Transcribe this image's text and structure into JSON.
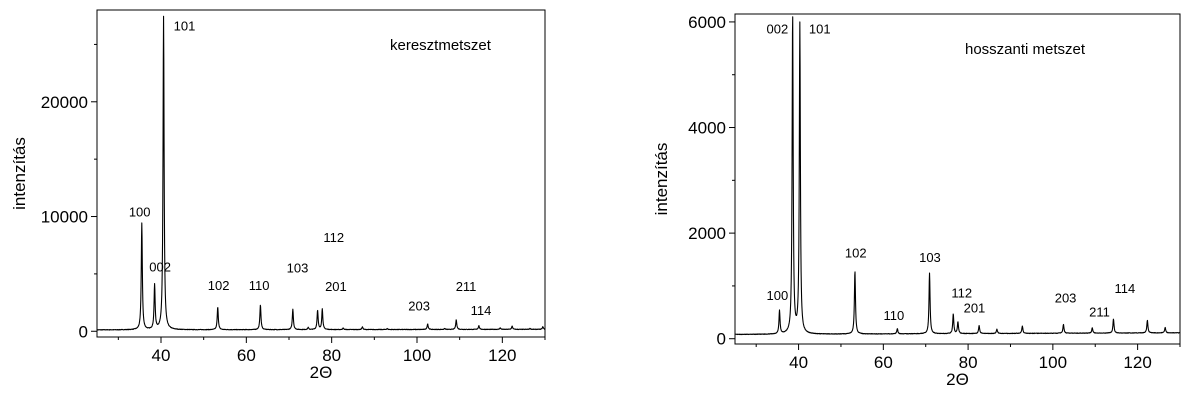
{
  "chart_data": [
    {
      "type": "line",
      "title": "keresztmetszet",
      "xlabel": "2Θ",
      "ylabel": "intenzítás",
      "xlim": [
        25,
        130
      ],
      "ylim": [
        -500,
        28000
      ],
      "xticks": [
        40,
        60,
        80,
        100,
        120
      ],
      "yticks": [
        0,
        10000,
        20000
      ],
      "grid": false,
      "legend": "none",
      "baseline": 120,
      "series": [
        {
          "values": [
            {
              "x": 35.5,
              "y": 9400
            },
            {
              "x": 38.5,
              "y": 4000
            },
            {
              "x": 40.6,
              "y": 27400
            },
            {
              "x": 53.3,
              "y": 2100
            },
            {
              "x": 63.3,
              "y": 2300
            },
            {
              "x": 70.9,
              "y": 1900
            },
            {
              "x": 74.5,
              "y": 300
            },
            {
              "x": 76.7,
              "y": 1800
            },
            {
              "x": 77.8,
              "y": 1900
            },
            {
              "x": 82.7,
              "y": 250
            },
            {
              "x": 87.2,
              "y": 350
            },
            {
              "x": 93.0,
              "y": 200
            },
            {
              "x": 102.5,
              "y": 600
            },
            {
              "x": 106.5,
              "y": 200
            },
            {
              "x": 109.2,
              "y": 950
            },
            {
              "x": 114.5,
              "y": 450
            },
            {
              "x": 119.5,
              "y": 250
            },
            {
              "x": 122.3,
              "y": 400
            },
            {
              "x": 126.5,
              "y": 200
            },
            {
              "x": 129.5,
              "y": 350
            }
          ]
        }
      ],
      "annotations": [
        {
          "text": "101",
          "x": 45.5,
          "y": 26200
        },
        {
          "text": "100",
          "x": 35.0,
          "y": 10000
        },
        {
          "text": "002",
          "x": 39.8,
          "y": 5200
        },
        {
          "text": "102",
          "x": 53.5,
          "y": 3600
        },
        {
          "text": "110",
          "x": 63.0,
          "y": 3600
        },
        {
          "text": "103",
          "x": 72.0,
          "y": 5100
        },
        {
          "text": "112",
          "x": 80.5,
          "y": 7800
        },
        {
          "text": "201",
          "x": 81.0,
          "y": 3500
        },
        {
          "text": "203",
          "x": 100.5,
          "y": 1800
        },
        {
          "text": "211",
          "x": 111.5,
          "y": 3500
        },
        {
          "text": "114",
          "x": 115.0,
          "y": 1400
        }
      ]
    },
    {
      "type": "line",
      "title": "hosszanti metszet",
      "xlabel": "2Θ",
      "ylabel": "intenzítás",
      "xlim": [
        25,
        130
      ],
      "ylim": [
        -100,
        6150
      ],
      "xticks": [
        40,
        60,
        80,
        100,
        120
      ],
      "yticks": [
        0,
        2000,
        4000,
        6000
      ],
      "grid": false,
      "legend": "none",
      "baseline": 80,
      "series": [
        {
          "values": [
            {
              "x": 35.5,
              "y": 520
            },
            {
              "x": 38.6,
              "y": 6150
            },
            {
              "x": 40.3,
              "y": 5950
            },
            {
              "x": 53.3,
              "y": 1280
            },
            {
              "x": 63.3,
              "y": 180
            },
            {
              "x": 70.9,
              "y": 1230
            },
            {
              "x": 76.5,
              "y": 450
            },
            {
              "x": 77.6,
              "y": 300
            },
            {
              "x": 82.6,
              "y": 230
            },
            {
              "x": 86.8,
              "y": 160
            },
            {
              "x": 92.8,
              "y": 220
            },
            {
              "x": 102.5,
              "y": 250
            },
            {
              "x": 109.3,
              "y": 180
            },
            {
              "x": 114.3,
              "y": 350
            },
            {
              "x": 122.3,
              "y": 320
            },
            {
              "x": 126.5,
              "y": 180
            }
          ]
        }
      ],
      "annotations": [
        {
          "text": "002",
          "x": 35.0,
          "y": 5780
        },
        {
          "text": "101",
          "x": 45.0,
          "y": 5780
        },
        {
          "text": "102",
          "x": 53.5,
          "y": 1540
        },
        {
          "text": "100",
          "x": 35.0,
          "y": 730
        },
        {
          "text": "110",
          "x": 62.5,
          "y": 350
        },
        {
          "text": "103",
          "x": 71.0,
          "y": 1450
        },
        {
          "text": "112",
          "x": 78.5,
          "y": 780
        },
        {
          "text": "201",
          "x": 81.5,
          "y": 500
        },
        {
          "text": "203",
          "x": 103.0,
          "y": 690
        },
        {
          "text": "211",
          "x": 111.0,
          "y": 420
        },
        {
          "text": "114",
          "x": 117.0,
          "y": 870
        }
      ]
    }
  ]
}
